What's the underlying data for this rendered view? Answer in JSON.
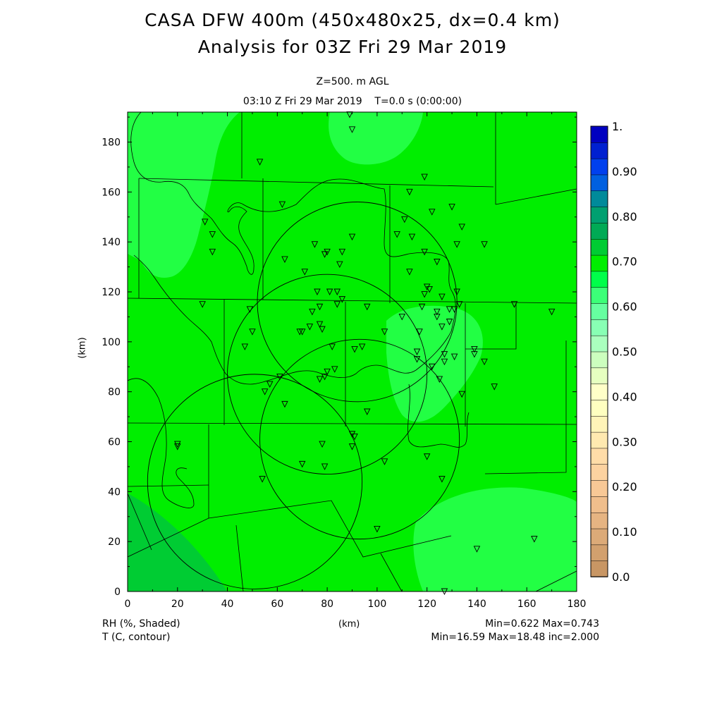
{
  "header": {
    "title_line1": "CASA DFW 400m (450x480x25, dx=0.4 km)",
    "title_line2": "Analysis for 03Z Fri 29 Mar 2019",
    "level": "Z=500. m AGL",
    "time": "03:10 Z Fri 29 Mar 2019    T=0.0 s (0:00:00)"
  },
  "footer": {
    "field1": "RH (%, Shaded)",
    "field2": "T (C, contour)",
    "stats1": "Min=0.622 Max=0.743",
    "stats2": "Min=16.59 Max=18.48 inc=2.000"
  },
  "chart_data": {
    "type": "heatmap",
    "xlabel": "(km)",
    "ylabel": "(km)",
    "xlim": [
      0,
      180
    ],
    "ylim": [
      0,
      192
    ],
    "x_ticks": [
      0,
      20,
      40,
      60,
      80,
      100,
      120,
      140,
      160,
      180
    ],
    "y_ticks": [
      0,
      20,
      40,
      60,
      80,
      100,
      120,
      140,
      160,
      180
    ],
    "colorbar": {
      "labels": [
        "0.0",
        "0.10",
        "0.20",
        "0.30",
        "0.40",
        "0.50",
        "0.60",
        "0.70",
        "0.80",
        "0.90",
        "1."
      ],
      "colors": [
        "#c89664",
        "#d2a06e",
        "#dcaa78",
        "#e6b482",
        "#f0be8c",
        "#f8c896",
        "#fcd2a0",
        "#ffdca8",
        "#ffe9b0",
        "#fff4b8",
        "#ffffc0",
        "#ffffc8",
        "#e6ffc0",
        "#ccffbe",
        "#aaffbe",
        "#88ffb4",
        "#66ffa0",
        "#3cff78",
        "#00ff4a",
        "#00ee00",
        "#00cc33",
        "#00aa55",
        "#00a070",
        "#008a9a",
        "#0060e0",
        "#0040ee",
        "#0020d0",
        "#0000c0"
      ]
    },
    "field": "RH",
    "field_min": 0.622,
    "field_max": 0.743,
    "radar_circles": [
      {
        "cx": 92,
        "cy": 116,
        "r": 40
      },
      {
        "cx": 80,
        "cy": 87,
        "r": 40
      },
      {
        "cx": 93,
        "cy": 61,
        "r": 40
      },
      {
        "cx": 51,
        "cy": 44,
        "r": 43
      }
    ],
    "stations": [
      [
        89,
        191
      ],
      [
        90,
        185
      ],
      [
        53,
        172
      ],
      [
        119,
        166
      ],
      [
        113,
        160
      ],
      [
        122,
        152
      ],
      [
        130,
        154
      ],
      [
        31,
        148
      ],
      [
        34,
        143
      ],
      [
        111,
        149
      ],
      [
        134,
        146
      ],
      [
        62,
        155
      ],
      [
        75,
        139
      ],
      [
        80,
        136
      ],
      [
        79,
        135
      ],
      [
        86,
        136
      ],
      [
        90,
        142
      ],
      [
        108,
        143
      ],
      [
        114,
        142
      ],
      [
        119,
        136
      ],
      [
        132,
        139
      ],
      [
        143,
        139
      ],
      [
        34,
        136
      ],
      [
        63,
        133
      ],
      [
        71,
        128
      ],
      [
        85,
        131
      ],
      [
        113,
        128
      ],
      [
        124,
        132
      ],
      [
        30,
        115
      ],
      [
        49,
        113
      ],
      [
        76,
        120
      ],
      [
        81,
        120
      ],
      [
        84,
        120
      ],
      [
        86,
        117
      ],
      [
        77,
        114
      ],
      [
        74,
        112
      ],
      [
        84,
        115
      ],
      [
        96,
        114
      ],
      [
        110,
        110
      ],
      [
        119,
        119
      ],
      [
        121,
        121
      ],
      [
        120,
        122
      ],
      [
        126,
        118
      ],
      [
        132,
        120
      ],
      [
        118,
        114
      ],
      [
        124,
        110
      ],
      [
        129,
        113
      ],
      [
        133,
        115
      ],
      [
        131,
        113
      ],
      [
        155,
        115
      ],
      [
        170,
        112
      ],
      [
        73,
        106
      ],
      [
        69,
        104
      ],
      [
        70,
        104
      ],
      [
        77,
        107
      ],
      [
        78,
        105
      ],
      [
        82,
        98
      ],
      [
        91,
        97
      ],
      [
        94,
        98
      ],
      [
        47,
        98
      ],
      [
        50,
        104
      ],
      [
        103,
        104
      ],
      [
        117,
        104
      ],
      [
        129,
        108
      ],
      [
        124,
        112
      ],
      [
        126,
        106
      ],
      [
        139,
        97
      ],
      [
        139,
        95
      ],
      [
        127,
        95
      ],
      [
        127,
        92
      ],
      [
        131,
        94
      ],
      [
        116,
        96
      ],
      [
        116,
        93
      ],
      [
        122,
        90
      ],
      [
        143,
        92
      ],
      [
        147,
        82
      ],
      [
        134,
        79
      ],
      [
        125,
        85
      ],
      [
        80,
        88
      ],
      [
        77,
        85
      ],
      [
        79,
        86
      ],
      [
        83,
        89
      ],
      [
        55,
        80
      ],
      [
        57,
        83
      ],
      [
        61,
        86
      ],
      [
        63,
        75
      ],
      [
        96,
        72
      ],
      [
        90,
        63
      ],
      [
        91,
        62
      ],
      [
        78,
        59
      ],
      [
        90,
        58
      ],
      [
        120,
        54
      ],
      [
        103,
        52
      ],
      [
        70,
        51
      ],
      [
        79,
        50
      ],
      [
        54,
        45
      ],
      [
        126,
        45
      ],
      [
        20,
        59
      ],
      [
        20,
        58
      ],
      [
        100,
        25
      ],
      [
        140,
        17
      ],
      [
        163,
        21
      ],
      [
        127,
        0
      ]
    ]
  }
}
